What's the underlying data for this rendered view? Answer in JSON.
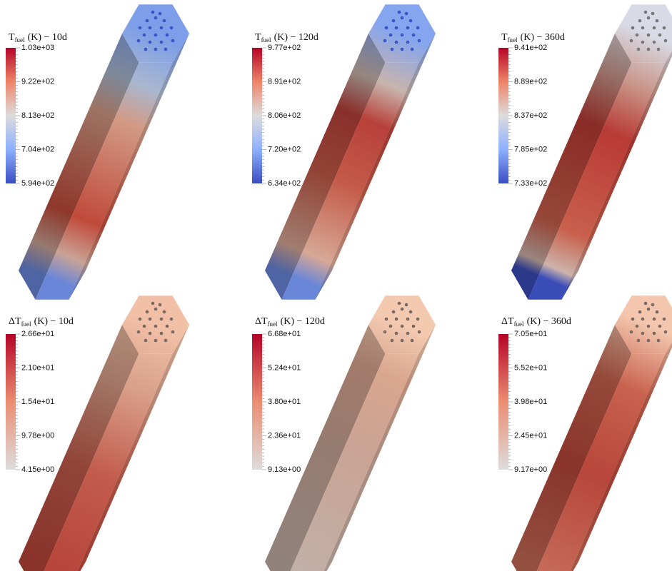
{
  "panels": [
    {
      "label": {
        "symbol": "T",
        "subscript": "fuel",
        "suffix": "(K) − 10d"
      },
      "colorbar": {
        "ticks": [
          "1.03e+03",
          "9.22e+02",
          "8.13e+02",
          "7.04e+02",
          "5.94e+02"
        ]
      }
    },
    {
      "label": {
        "symbol": "T",
        "subscript": "fuel",
        "suffix": "(K) − 120d"
      },
      "colorbar": {
        "ticks": [
          "9.77e+02",
          "8.91e+02",
          "8.06e+02",
          "7.20e+02",
          "6.34e+02"
        ]
      }
    },
    {
      "label": {
        "symbol": "T",
        "subscript": "fuel",
        "suffix": "(K) − 360d"
      },
      "colorbar": {
        "ticks": [
          "9.41e+02",
          "8.89e+02",
          "8.37e+02",
          "7.85e+02",
          "7.33e+02"
        ]
      }
    },
    {
      "label": {
        "symbol": "ΔT",
        "subscript": "fuel",
        "suffix": "(K) − 10d"
      },
      "colorbar": {
        "ticks": [
          "2.66e+01",
          "2.10e+01",
          "1.54e+01",
          "9.78e+00",
          "4.15e+00"
        ]
      }
    },
    {
      "label": {
        "symbol": "ΔT",
        "subscript": "fuel",
        "suffix": "(K) − 120d"
      },
      "colorbar": {
        "ticks": [
          "6.68e+01",
          "5.24e+01",
          "3.80e+01",
          "2.36e+01",
          "9.13e+00"
        ]
      }
    },
    {
      "label": {
        "symbol": "ΔT",
        "subscript": "fuel",
        "suffix": "(K) − 360d"
      },
      "colorbar": {
        "ticks": [
          "7.05e+01",
          "5.52e+01",
          "3.98e+01",
          "2.45e+01",
          "9.17e+00"
        ]
      }
    }
  ]
}
